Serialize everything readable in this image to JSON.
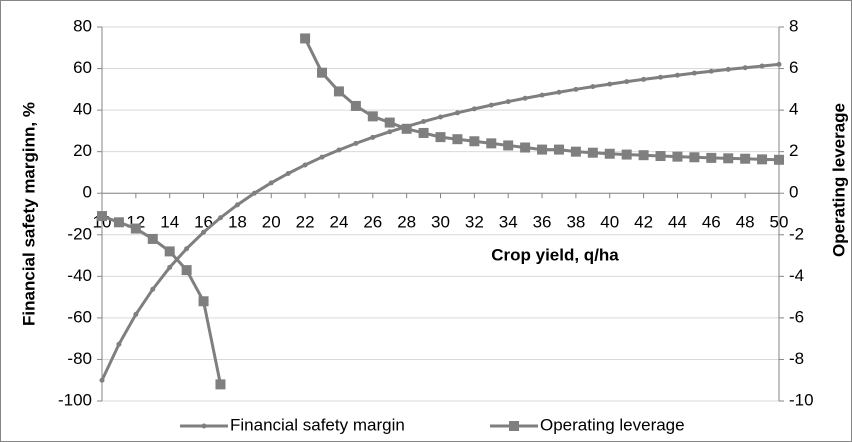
{
  "chart_data": {
    "type": "line",
    "x_label": "Crop yield, q/ha",
    "y_label": "Financial safety marginn, %",
    "y2_label": "Operating leverage",
    "x": [
      10,
      11,
      12,
      13,
      14,
      15,
      16,
      17,
      18,
      19,
      20,
      21,
      22,
      23,
      24,
      25,
      26,
      27,
      28,
      29,
      30,
      31,
      32,
      33,
      34,
      35,
      36,
      37,
      38,
      39,
      40,
      41,
      42,
      43,
      44,
      45,
      46,
      47,
      48,
      49,
      50
    ],
    "xlim": [
      10,
      50
    ],
    "xticks": [
      10,
      12,
      14,
      16,
      18,
      20,
      22,
      24,
      26,
      28,
      30,
      32,
      34,
      36,
      38,
      40,
      42,
      44,
      46,
      48,
      50
    ],
    "ylim": [
      -100,
      80
    ],
    "yticks": [
      -100,
      -80,
      -60,
      -40,
      -20,
      0,
      20,
      40,
      60,
      80
    ],
    "y2lim": [
      -10,
      8
    ],
    "y2ticks": [
      -10,
      -8,
      -6,
      -4,
      -2,
      0,
      2,
      4,
      6,
      8
    ],
    "grid": true,
    "legend": "bottom",
    "series": [
      {
        "name": "Financial safety margin",
        "color": "#7f7f7f",
        "marker": "dot",
        "values": [
          -90,
          -72.7,
          -58.3,
          -46.2,
          -35.7,
          -26.7,
          -18.8,
          -11.8,
          -5.6,
          0,
          5,
          9.5,
          13.6,
          17.4,
          20.8,
          24,
          26.9,
          29.6,
          32.1,
          34.5,
          36.7,
          38.7,
          40.6,
          42.4,
          44.1,
          45.7,
          47.2,
          48.6,
          50,
          51.3,
          52.5,
          53.7,
          54.8,
          55.8,
          56.8,
          57.8,
          58.7,
          59.6,
          60.4,
          61.2,
          62
        ]
      },
      {
        "name": "Operating leverage",
        "color": "#7f7f7f",
        "marker": "square",
        "axis": "y2",
        "values": [
          -1.1,
          -1.4,
          -1.7,
          -2.2,
          -2.8,
          -3.7,
          -5.2,
          -9.2,
          null,
          null,
          null,
          null,
          7.45,
          5.8,
          4.9,
          4.2,
          3.7,
          3.4,
          3.1,
          2.9,
          2.7,
          2.6,
          2.5,
          2.4,
          2.3,
          2.2,
          2.1,
          2.1,
          2,
          1.95,
          1.9,
          1.86,
          1.83,
          1.79,
          1.76,
          1.73,
          1.7,
          1.68,
          1.66,
          1.63,
          1.61
        ]
      }
    ]
  }
}
